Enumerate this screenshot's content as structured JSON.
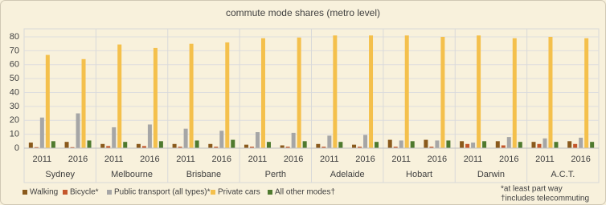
{
  "chart_data": {
    "type": "bar",
    "title": "commute mode shares (metro level)",
    "groups": [
      {
        "name": "Sydney",
        "categories": [
          "2011",
          "2016"
        ]
      },
      {
        "name": "Melbourne",
        "categories": [
          "2011",
          "2016"
        ]
      },
      {
        "name": "Brisbane",
        "categories": [
          "2011",
          "2016"
        ]
      },
      {
        "name": "Perth",
        "categories": [
          "2011",
          "2016"
        ]
      },
      {
        "name": "Adelaide",
        "categories": [
          "2011",
          "2016"
        ]
      },
      {
        "name": "Hobart",
        "categories": [
          "2011",
          "2016"
        ]
      },
      {
        "name": "Darwin",
        "categories": [
          "2011",
          "2016"
        ]
      },
      {
        "name": "A.C.T.",
        "categories": [
          "2011",
          "2016"
        ]
      }
    ],
    "series": [
      {
        "name": "Walking",
        "color": "#8a5a1c",
        "values": [
          4,
          4.5,
          3,
          3,
          3,
          3,
          2.5,
          2,
          3,
          2.5,
          6,
          6,
          5,
          5,
          4.5,
          5
        ]
      },
      {
        "name": "Bicycle*",
        "color": "#c4562a",
        "values": [
          0.7,
          0.7,
          1.5,
          1.5,
          1,
          1,
          1,
          1,
          1,
          1,
          1,
          1,
          3,
          2,
          3,
          3
        ]
      },
      {
        "name": "Public transport (all types)*",
        "color": "#a6a6a6",
        "values": [
          22,
          25,
          15,
          17,
          14,
          12.5,
          11.5,
          11,
          9,
          9.5,
          5.5,
          5.5,
          4,
          8,
          7,
          7.5
        ]
      },
      {
        "name": "Private cars",
        "color": "#f4c04c",
        "values": [
          67,
          64,
          74.5,
          72,
          75,
          76,
          79,
          79.5,
          81,
          81,
          81,
          80,
          81,
          79,
          80,
          79
        ]
      },
      {
        "name": "All other modes†",
        "color": "#4f7a2e",
        "values": [
          5,
          5.5,
          4.5,
          5,
          5.5,
          6,
          4.5,
          5,
          4.5,
          4.5,
          5,
          5.5,
          5,
          4.5,
          4.5,
          4.5
        ]
      }
    ],
    "ylim": [
      0,
      80
    ],
    "yticks": [
      0,
      10,
      20,
      30,
      40,
      50,
      60,
      70,
      80
    ],
    "grid": true,
    "footnotes": [
      "*at least part way",
      "†includes telecommuting"
    ]
  }
}
